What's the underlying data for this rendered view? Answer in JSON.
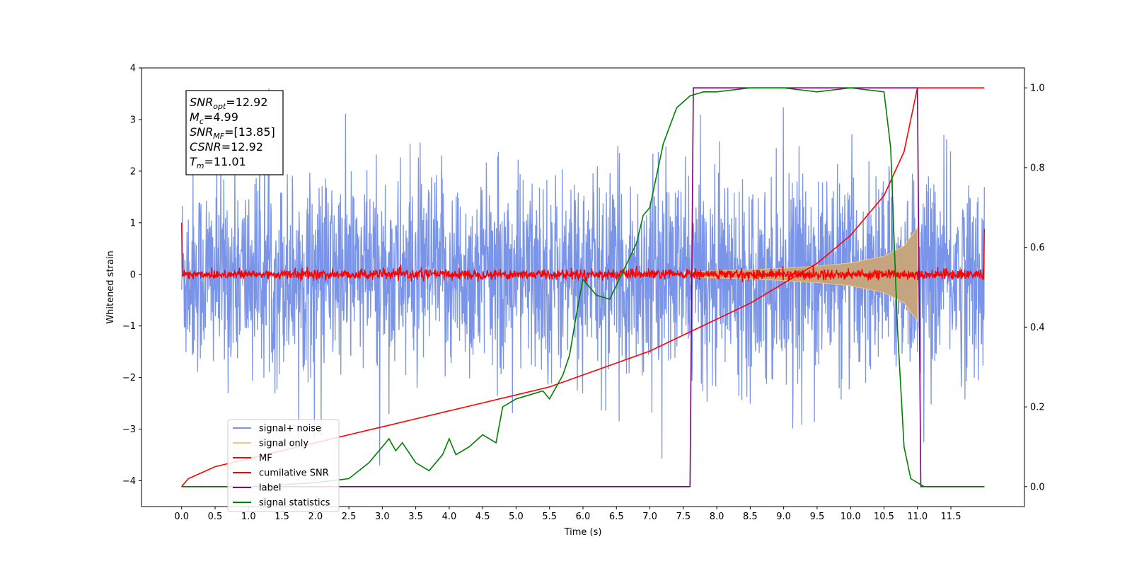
{
  "chart_data": {
    "type": "line",
    "xlabel": "Time (s)",
    "ylabel": "Whitened strain",
    "xlim": [
      -0.6,
      12.6
    ],
    "ylim": [
      -4.5,
      4.0
    ],
    "ylim_right": [
      -0.05,
      1.05
    ],
    "x_ticks": [
      0.0,
      0.5,
      1.0,
      1.5,
      2.0,
      2.5,
      3.0,
      3.5,
      4.0,
      4.5,
      5.0,
      5.5,
      6.0,
      6.5,
      7.0,
      7.5,
      8.0,
      8.5,
      9.0,
      9.5,
      10.0,
      10.5,
      11.0,
      11.5
    ],
    "x_tick_labels": [
      "0.0",
      "0.5",
      "1.0",
      "1.5",
      "2.0",
      "2.5",
      "3.0",
      "3.5",
      "4.0",
      "4.5",
      "5.0",
      "5.5",
      "6.0",
      "6.5",
      "7.0",
      "7.5",
      "8.0",
      "8.5",
      "9.0",
      "9.5",
      "10.0",
      "10.5",
      "11.0",
      "11.5"
    ],
    "y_ticks": [
      -4,
      -3,
      -2,
      -1,
      0,
      1,
      2,
      3,
      4
    ],
    "y_tick_labels": [
      "−4",
      "−3",
      "−2",
      "−1",
      "0",
      "1",
      "2",
      "3",
      "4"
    ],
    "y_right_ticks": [
      0.0,
      0.2,
      0.4,
      0.6,
      0.8,
      1.0
    ],
    "y_right_tick_labels": [
      "0.0",
      "0.2",
      "0.4",
      "0.6",
      "0.8",
      "1.0"
    ],
    "grid": false,
    "legend_position": "lower-left",
    "annotation": [
      {
        "var": "SNR",
        "sub": "opt",
        "val": "=12.92"
      },
      {
        "var": "M",
        "sub": "c",
        "val": "=4.99"
      },
      {
        "var": "SNR",
        "sub": "MF",
        "val": "=[13.85]"
      },
      {
        "var": "CSNR",
        "sub": "",
        "val": "=12.92"
      },
      {
        "var": "T",
        "sub": "m",
        "val": "=11.01"
      }
    ],
    "series": [
      {
        "name": "signal+ noise",
        "color": "#7994e8",
        "axis": "left",
        "description": "noise band approx between -2.0 and 2.1, spikes to about 3.6 and -3.7",
        "x_range": [
          0.0,
          12.0
        ],
        "envelope": [
          -2.0,
          2.1
        ]
      },
      {
        "name": "signal only",
        "color": "#f5c878",
        "axis": "left",
        "fill_color": "#c4a57f",
        "description": "chirp from ~7.6 s to 11.0 s growing amplitude to ~0.9",
        "x": [
          7.6,
          8.0,
          8.5,
          9.0,
          9.5,
          10.0,
          10.5,
          10.8,
          11.0
        ],
        "amplitude": [
          0.05,
          0.07,
          0.09,
          0.12,
          0.16,
          0.22,
          0.35,
          0.55,
          0.9
        ]
      },
      {
        "name": "MF",
        "color": "#ff0000",
        "axis": "left",
        "description": "matched filter output near zero",
        "x_range": [
          0.0,
          12.0
        ],
        "amplitude": 0.12
      },
      {
        "name": "cumilative SNR",
        "color": "#ff0000",
        "axis": "right",
        "x": [
          0.0,
          0.1,
          0.5,
          1.0,
          1.5,
          2.0,
          2.5,
          3.0,
          3.5,
          4.0,
          4.5,
          5.0,
          5.5,
          6.0,
          6.5,
          7.0,
          7.5,
          8.0,
          8.5,
          9.0,
          9.5,
          10.0,
          10.5,
          10.8,
          11.0,
          12.0
        ],
        "values": [
          0.0,
          0.02,
          0.05,
          0.07,
          0.09,
          0.11,
          0.13,
          0.15,
          0.17,
          0.19,
          0.21,
          0.23,
          0.25,
          0.28,
          0.31,
          0.34,
          0.38,
          0.42,
          0.46,
          0.51,
          0.56,
          0.63,
          0.73,
          0.84,
          1.0,
          1.0
        ]
      },
      {
        "name": "label",
        "color": "#800080",
        "axis": "right",
        "x": [
          0.0,
          7.6,
          7.65,
          11.0,
          11.05,
          12.0
        ],
        "values": [
          0.0,
          0.0,
          1.0,
          1.0,
          0.0,
          0.0
        ]
      },
      {
        "name": "signal statistics",
        "color": "#008000",
        "axis": "right",
        "x": [
          0.0,
          1.0,
          2.0,
          2.5,
          2.8,
          3.0,
          3.1,
          3.2,
          3.3,
          3.5,
          3.7,
          3.9,
          4.0,
          4.1,
          4.3,
          4.5,
          4.7,
          4.8,
          5.0,
          5.2,
          5.4,
          5.5,
          5.6,
          5.7,
          5.8,
          5.9,
          6.0,
          6.2,
          6.4,
          6.6,
          6.8,
          6.9,
          7.0,
          7.2,
          7.4,
          7.6,
          7.8,
          8.0,
          8.5,
          9.0,
          9.5,
          10.0,
          10.5,
          10.6,
          10.7,
          10.8,
          10.9,
          11.0,
          11.1,
          12.0
        ],
        "values": [
          0.0,
          0.0,
          0.01,
          0.02,
          0.06,
          0.1,
          0.12,
          0.09,
          0.11,
          0.06,
          0.04,
          0.08,
          0.12,
          0.08,
          0.1,
          0.13,
          0.11,
          0.2,
          0.22,
          0.23,
          0.24,
          0.22,
          0.25,
          0.28,
          0.33,
          0.43,
          0.52,
          0.48,
          0.47,
          0.54,
          0.61,
          0.68,
          0.7,
          0.86,
          0.95,
          0.98,
          0.99,
          0.99,
          1.0,
          1.0,
          0.99,
          1.0,
          0.99,
          0.85,
          0.4,
          0.1,
          0.02,
          0.01,
          0.0,
          0.0
        ]
      }
    ]
  }
}
